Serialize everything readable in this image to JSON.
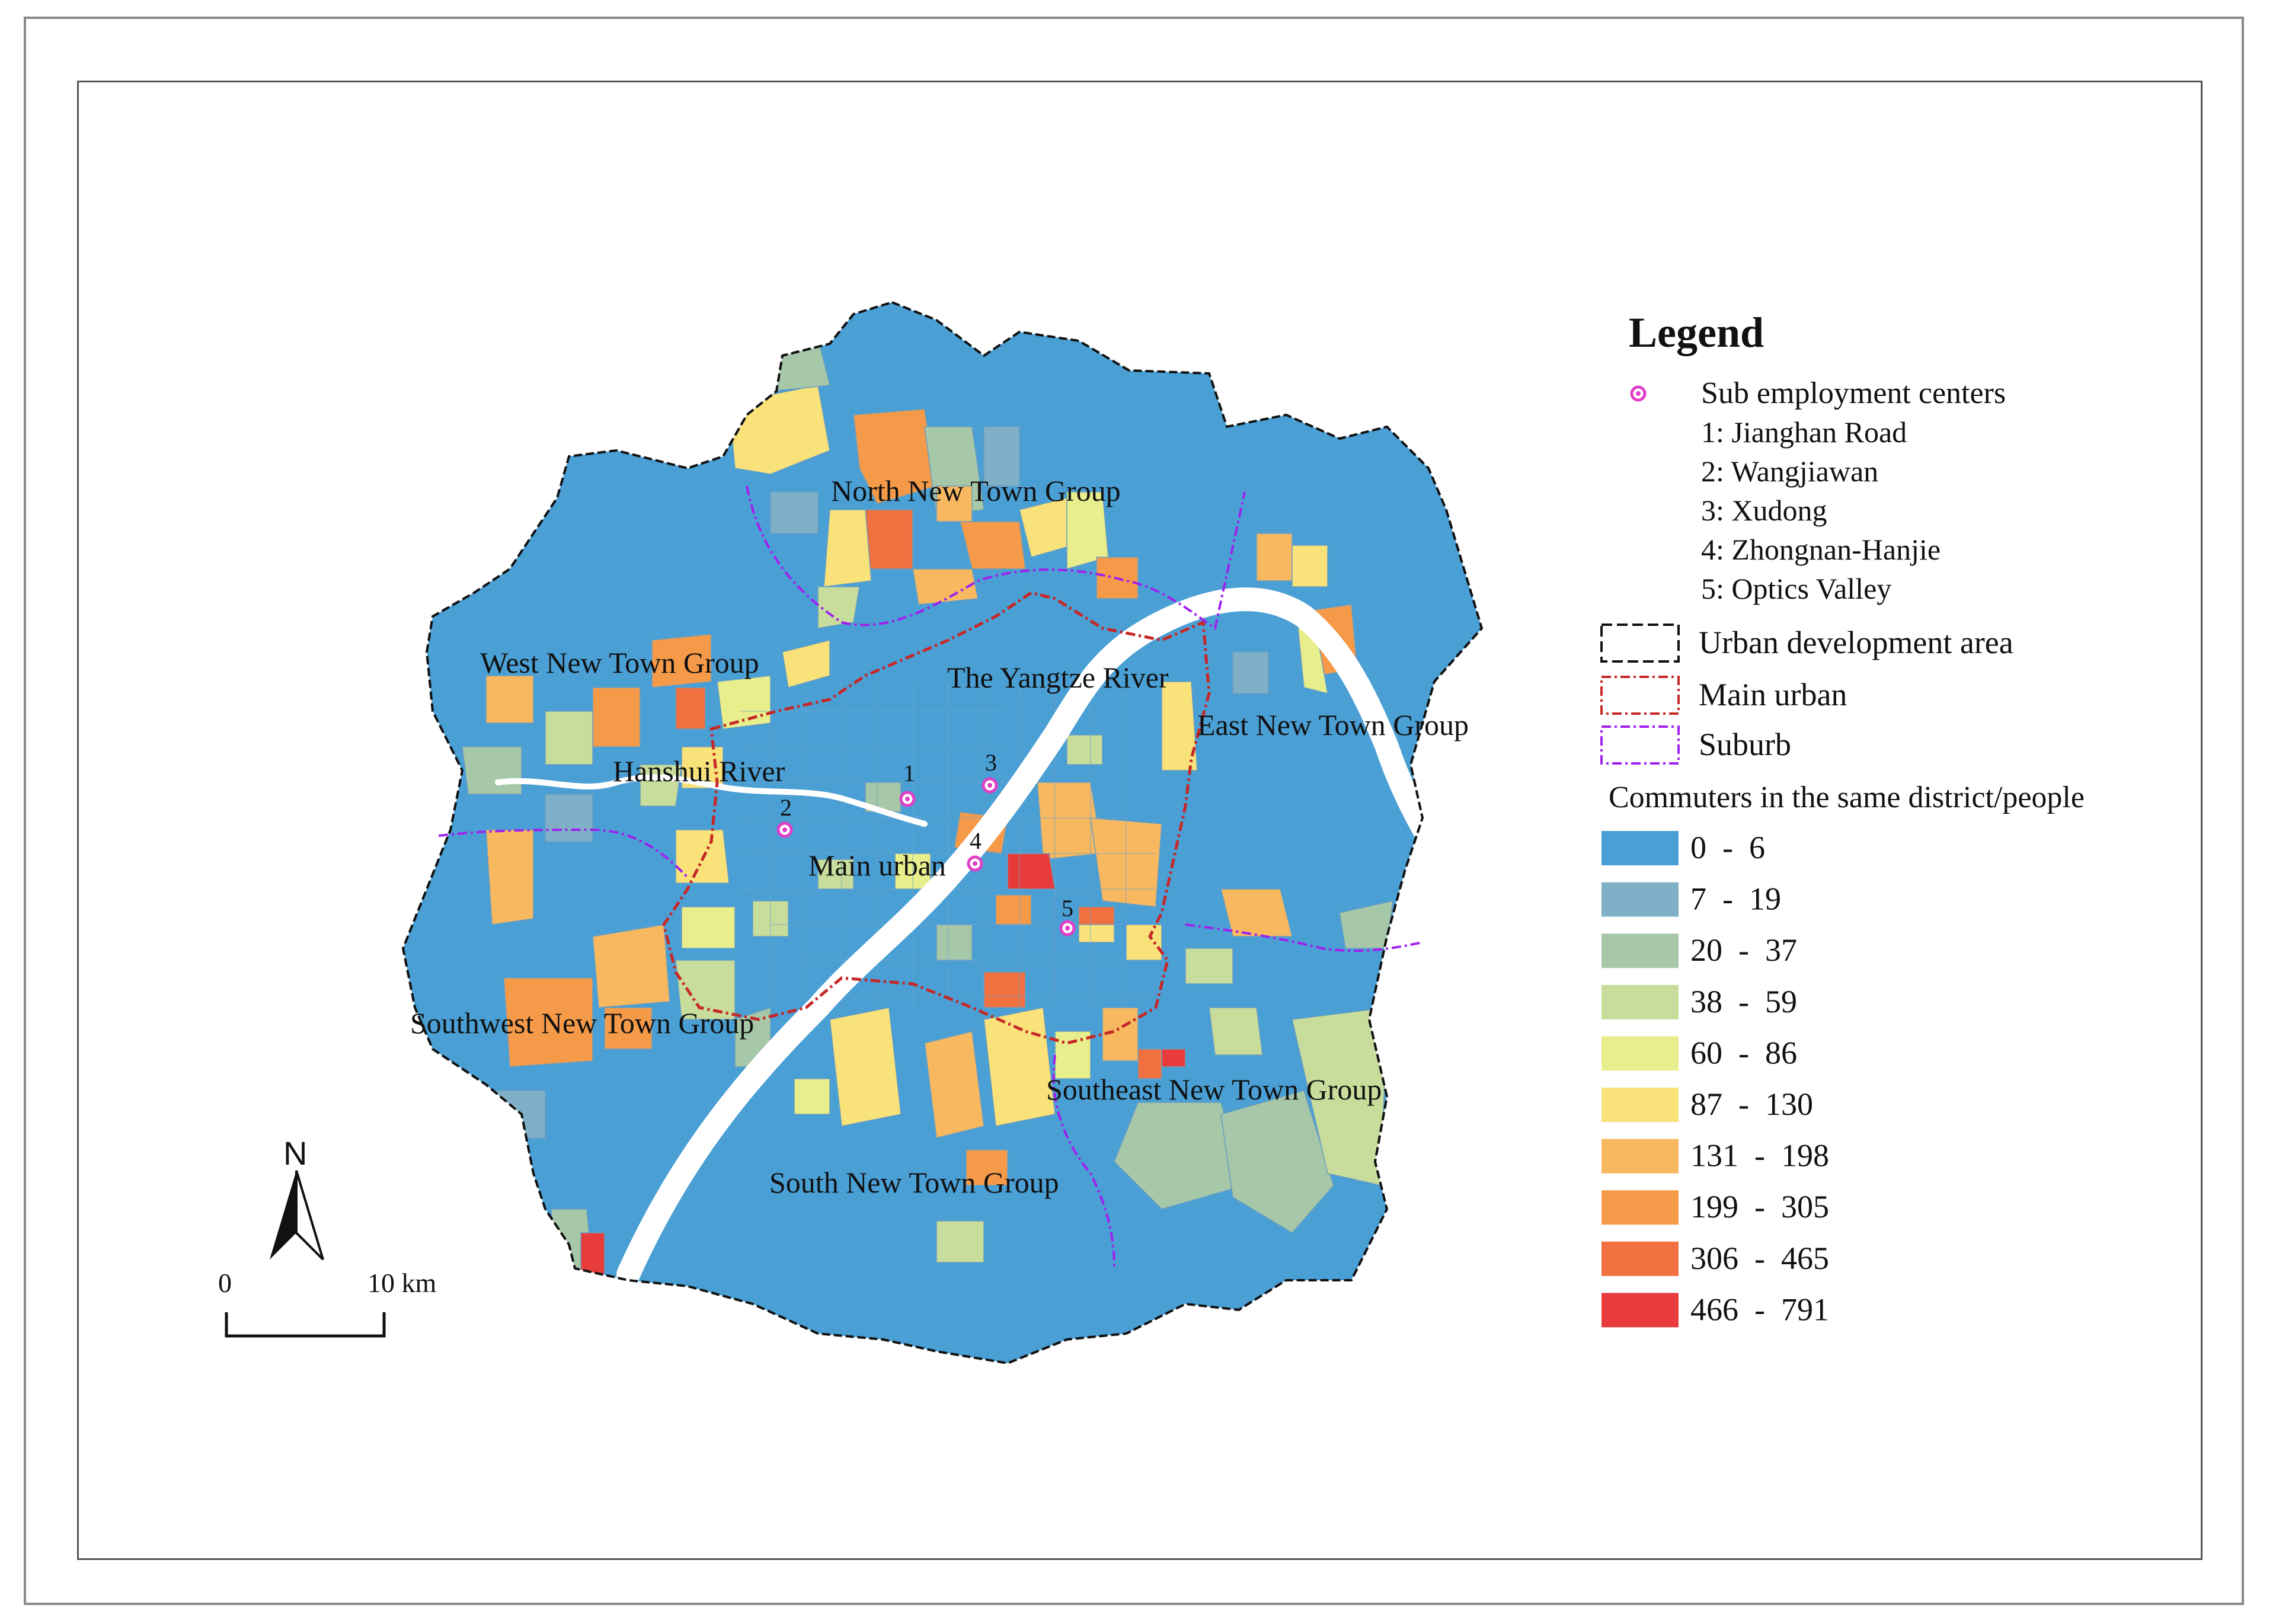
{
  "legend": {
    "title": "Legend",
    "sub_centers_label": "Sub employment centers",
    "centers": [
      "1: Jianghan Road",
      "2: Wangjiawan",
      "3: Xudong",
      "4: Zhongnan-Hanjie",
      "5: Optics Valley"
    ],
    "boundaries": [
      {
        "label": "Urban development area",
        "color": "#111111",
        "dash": "long"
      },
      {
        "label": "Main urban",
        "color": "#c62828",
        "dash": "dashdot"
      },
      {
        "label": "Suburb",
        "color": "#a020f0",
        "dash": "dashdot"
      }
    ],
    "classes_title": "Commuters in the same district/people",
    "classes": [
      {
        "label": "0  -  6",
        "color": "#4a9fd4"
      },
      {
        "label": "7  -  19",
        "color": "#7fb0c8"
      },
      {
        "label": "20  -  37",
        "color": "#a6c7a8"
      },
      {
        "label": "38  -  59",
        "color": "#c8dd9c"
      },
      {
        "label": "60  -  86",
        "color": "#e8ee8c"
      },
      {
        "label": "87  -  130",
        "color": "#f9e27a"
      },
      {
        "label": "131  -  198",
        "color": "#f8b860"
      },
      {
        "label": "199  -  305",
        "color": "#f59a48"
      },
      {
        "label": "306  -  465",
        "color": "#f07040"
      },
      {
        "label": "466  -  791",
        "color": "#e83c3c"
      }
    ]
  },
  "map_labels": {
    "north": "North  New Town Group",
    "west": "West New Town  Group",
    "yangtze": "The Yangtze River",
    "east": "East New Town  Group",
    "hanshui": "Hanshui River",
    "main_urban": "Main urban",
    "southwest": "Southwest New Town  Group",
    "southeast": "Southeast New Town  Group",
    "south": "South New Town  Group"
  },
  "center_markers": [
    "1",
    "2",
    "3",
    "4",
    "5"
  ],
  "north_arrow": {
    "letter": "N",
    "icon": "north-arrow-icon"
  },
  "scale_bar": {
    "start": "0",
    "end": "10 km"
  },
  "colors": {
    "urban_boundary": "#111111",
    "main_urban": "#c62828",
    "suburb": "#a020f0",
    "river": "#ffffff",
    "marker": "#e040c8"
  }
}
